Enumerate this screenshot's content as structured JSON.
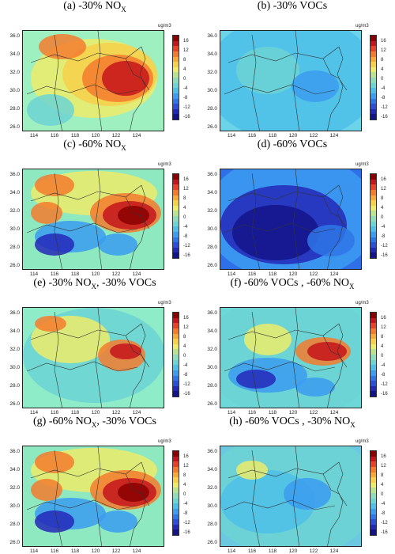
{
  "unit": "ug/m3",
  "y_ticks": [
    "36.0",
    "34.0",
    "32.0",
    "30.0",
    "28.0",
    "26.0"
  ],
  "x_ticks": [
    "114",
    "116",
    "118",
    "120",
    "122",
    "124"
  ],
  "colorbar_labels": [
    "16",
    "12",
    "8",
    "4",
    "0",
    "-4",
    "-8",
    "-12",
    "-16"
  ],
  "colorbar_colors": [
    "#8b0000",
    "#c4151c",
    "#e8412a",
    "#f47b2e",
    "#f8a837",
    "#f6d04a",
    "#ecec6a",
    "#b8e38f",
    "#8edcb9",
    "#6cd4d4",
    "#4ec0e8",
    "#3b9cf0",
    "#2f77e8",
    "#2b4fd8",
    "#2428b8",
    "#14148a"
  ],
  "panels": [
    {
      "letter": "(a)",
      "pre": " -30% NO",
      "sub": "X",
      "post": "",
      "level": "pos_strong",
      "tint": "#9ef0c0"
    },
    {
      "letter": "(b)",
      "pre": " -30% VOCs",
      "sub": "",
      "post": "",
      "level": "neg_light",
      "tint": "#6cd4e8"
    },
    {
      "letter": "(c)",
      "pre": " -60% NO",
      "sub": "X",
      "post": "",
      "level": "mixed_strong",
      "tint": "#8ee8c0"
    },
    {
      "letter": "(d)",
      "pre": " -60% VOCs",
      "sub": "",
      "post": "",
      "level": "neg_strong",
      "tint": "#2f6fe8"
    },
    {
      "letter": "(e)",
      "pre": " -30% NO",
      "sub": "X",
      "post": ", -30% VOCs",
      "level": "pos_mid",
      "tint": "#8eecc8"
    },
    {
      "letter": "(f)",
      "pre": " -60% VOCs , -60% NO",
      "sub": "X",
      "post": "",
      "level": "mixed_mid",
      "tint": "#6cd8d8"
    },
    {
      "letter": "(g)",
      "pre": " -60% NO",
      "sub": "X",
      "post": ", -30% VOCs",
      "level": "mixed_strong",
      "tint": "#8ee8c0"
    },
    {
      "letter": "(h)",
      "pre": " -60% VOCs , -30% NO",
      "sub": "X",
      "post": "",
      "level": "neg_mid",
      "tint": "#6cc8e0"
    }
  ]
}
